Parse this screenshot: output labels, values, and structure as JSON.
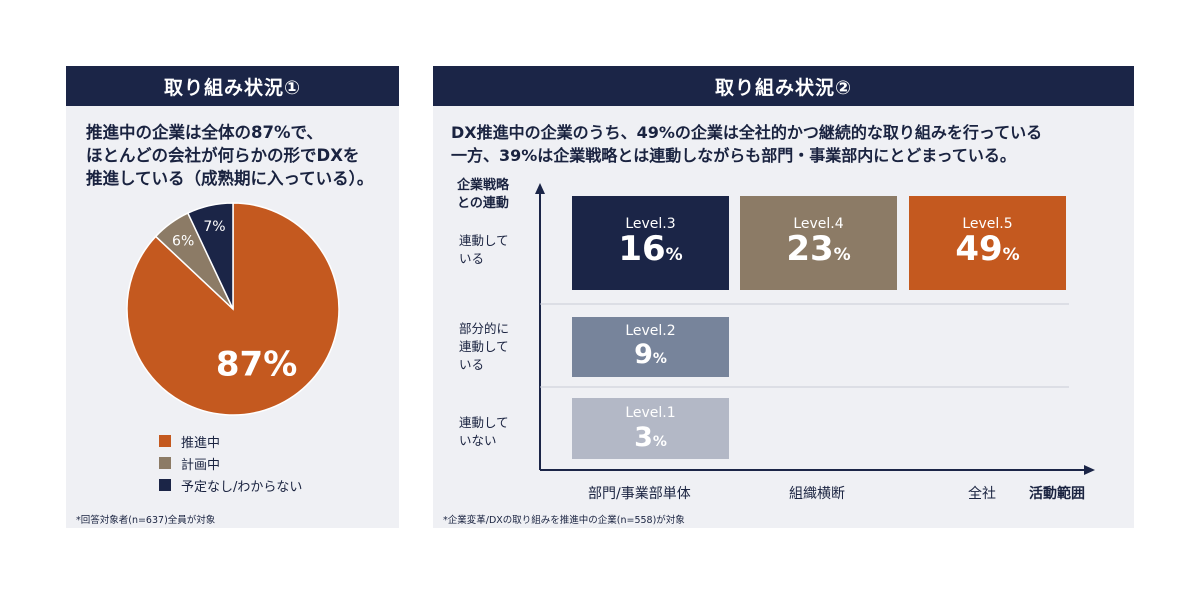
{
  "panel1": {
    "title": "取り組み状況①",
    "headline_lines": [
      "推進中の企業は全体の87%で、",
      "ほとんどの会社が何らかの形でDXを",
      "推進している（成熟期に入っている）。"
    ],
    "note": "*回答対象者(n=637)全員が対象"
  },
  "panel2": {
    "title": "取り組み状況②",
    "headline_lines": [
      "DX推進中の企業のうち、49%の企業は全社的かつ継続的な取り組みを行っている",
      "一方、39%は企業戦略とは連動しながらも部門・事業部内にとどまっている。"
    ],
    "note": "*企業変革/DXの取り組みを推進中の企業(n=558)が対象"
  },
  "chart_data": [
    {
      "type": "pie",
      "slices": [
        {
          "label": "推進中",
          "value": 87,
          "value_label": "87%",
          "color": "#c4591f"
        },
        {
          "label": "計画中",
          "value": 6,
          "value_label": "6%",
          "color": "#8c7b66"
        },
        {
          "label": "予定なし/わからない",
          "value": 7,
          "value_label": "7%",
          "color": "#1b2547"
        }
      ],
      "legend_position": "bottom-center"
    },
    {
      "type": "matrix",
      "y_axis_title": [
        "企業戦略",
        "との連動"
      ],
      "x_axis_title": "活動範囲",
      "y_categories": [
        {
          "lines": [
            "連動して",
            "いる"
          ]
        },
        {
          "lines": [
            "部分的に",
            "連動して",
            "いる"
          ]
        },
        {
          "lines": [
            "連動して",
            "いない"
          ]
        }
      ],
      "x_categories": [
        "部門/事業部単体",
        "組織横断",
        "全社"
      ],
      "cells": [
        {
          "level": "Level.3",
          "value": 16,
          "num": "16",
          "unit": "%",
          "row": 0,
          "col": 0,
          "color": "#1b2547"
        },
        {
          "level": "Level.4",
          "value": 23,
          "num": "23",
          "unit": "%",
          "row": 0,
          "col": 1,
          "color": "#8c7b66"
        },
        {
          "level": "Level.5",
          "value": 49,
          "num": "49",
          "unit": "%",
          "row": 0,
          "col": 2,
          "color": "#c4591f"
        },
        {
          "level": "Level.2",
          "value": 9,
          "num": "9",
          "unit": "%",
          "row": 1,
          "col": 0,
          "color": "#77849b"
        },
        {
          "level": "Level.1",
          "value": 3,
          "num": "3",
          "unit": "%",
          "row": 2,
          "col": 0,
          "color": "#b3b8c6"
        }
      ]
    }
  ]
}
